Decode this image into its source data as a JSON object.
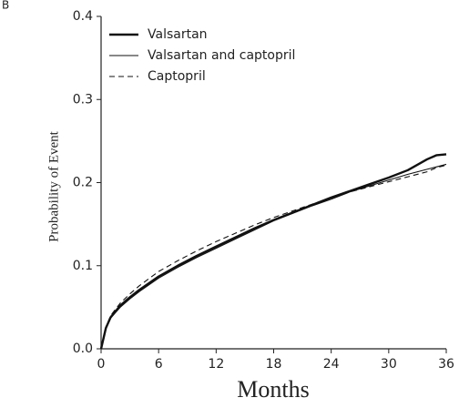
{
  "chart_data": {
    "type": "line",
    "panel_label": "B",
    "x_label": "Months",
    "y_label": "Probability of Event",
    "xlim": [
      0,
      36
    ],
    "ylim": [
      0,
      0.4
    ],
    "xticks": [
      0,
      6,
      12,
      18,
      24,
      30,
      36
    ],
    "yticks": [
      {
        "value": 0,
        "label": "0.0"
      },
      0.1,
      0.2,
      0.3,
      0.4
    ],
    "x": [
      0,
      0.5,
      1,
      2,
      3,
      4,
      6,
      8,
      10,
      12,
      14,
      16,
      18,
      20,
      22,
      24,
      26,
      28,
      30,
      32,
      34,
      35,
      36
    ],
    "series": [
      {
        "name": "Valsartan",
        "color": "#111111",
        "line_width": 2.4,
        "dash": false,
        "values": [
          0,
          0.025,
          0.038,
          0.052,
          0.062,
          0.071,
          0.087,
          0.1,
          0.112,
          0.123,
          0.134,
          0.145,
          0.155,
          0.164,
          0.173,
          0.182,
          0.19,
          0.198,
          0.206,
          0.215,
          0.228,
          0.233,
          0.234
        ]
      },
      {
        "name": "Valsartan and captopril",
        "color": "#111111",
        "line_width": 1.1,
        "dash": false,
        "values": [
          0,
          0.024,
          0.037,
          0.05,
          0.06,
          0.069,
          0.085,
          0.098,
          0.11,
          0.121,
          0.132,
          0.143,
          0.154,
          0.163,
          0.172,
          0.18,
          0.189,
          0.196,
          0.203,
          0.21,
          0.216,
          0.219,
          0.222
        ]
      },
      {
        "name": "Captopril",
        "color": "#111111",
        "line_width": 1.1,
        "dash": true,
        "values": [
          0,
          0.026,
          0.04,
          0.055,
          0.066,
          0.076,
          0.093,
          0.106,
          0.118,
          0.129,
          0.139,
          0.149,
          0.158,
          0.166,
          0.174,
          0.182,
          0.189,
          0.195,
          0.201,
          0.207,
          0.213,
          0.218,
          0.221
        ]
      }
    ]
  }
}
